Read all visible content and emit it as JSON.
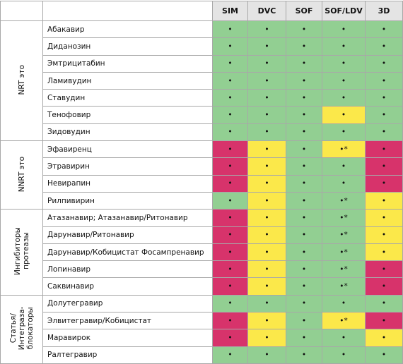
{
  "header": {
    "columns": [
      "SIM",
      "DVC",
      "SOF",
      "SOF/LDV",
      "3D"
    ]
  },
  "palette": {
    "g": "#92cf92",
    "y": "#fbe84a",
    "r": "#d7336b"
  },
  "groups": [
    {
      "label": "NRT это",
      "rows": [
        {
          "name": "Абакавир",
          "cells": [
            {
              "text": "•",
              "fill": "g"
            },
            {
              "text": "•",
              "fill": "g"
            },
            {
              "text": "•",
              "fill": "g"
            },
            {
              "text": "•",
              "fill": "g"
            },
            {
              "text": "•",
              "fill": "g"
            }
          ]
        },
        {
          "name": "Диданозин",
          "cells": [
            {
              "text": "•",
              "fill": "g"
            },
            {
              "text": "•",
              "fill": "g"
            },
            {
              "text": "•",
              "fill": "g"
            },
            {
              "text": "•",
              "fill": "g"
            },
            {
              "text": "•",
              "fill": "g"
            }
          ]
        },
        {
          "name": "Эмтрицитабин",
          "cells": [
            {
              "text": "•",
              "fill": "g"
            },
            {
              "text": "•",
              "fill": "g"
            },
            {
              "text": "•",
              "fill": "g"
            },
            {
              "text": "•",
              "fill": "g"
            },
            {
              "text": "•",
              "fill": "g"
            }
          ]
        },
        {
          "name": "Ламивудин",
          "cells": [
            {
              "text": "•",
              "fill": "g"
            },
            {
              "text": "•",
              "fill": "g"
            },
            {
              "text": "•",
              "fill": "g"
            },
            {
              "text": "•",
              "fill": "g"
            },
            {
              "text": "•",
              "fill": "g"
            }
          ]
        },
        {
          "name": "Ставудин",
          "cells": [
            {
              "text": "•",
              "fill": "g"
            },
            {
              "text": "•",
              "fill": "g"
            },
            {
              "text": "•",
              "fill": "g"
            },
            {
              "text": "•",
              "fill": "g"
            },
            {
              "text": "•",
              "fill": "g"
            }
          ]
        },
        {
          "name": "Тенофовир",
          "cells": [
            {
              "text": "•",
              "fill": "g"
            },
            {
              "text": "•",
              "fill": "g"
            },
            {
              "text": "•",
              "fill": "g"
            },
            {
              "text": "•",
              "fill": "y"
            },
            {
              "text": "•",
              "fill": "g"
            }
          ]
        },
        {
          "name": "Зидовудин",
          "cells": [
            {
              "text": "•",
              "fill": "g"
            },
            {
              "text": "•",
              "fill": "g"
            },
            {
              "text": "•",
              "fill": "g"
            },
            {
              "text": "•",
              "fill": "g"
            },
            {
              "text": "•",
              "fill": "g"
            }
          ]
        }
      ]
    },
    {
      "label": "NNRT это",
      "rows": [
        {
          "name": "Эфавиренц",
          "cells": [
            {
              "text": "•",
              "fill": "r"
            },
            {
              "text": "•",
              "fill": "y"
            },
            {
              "text": "•",
              "fill": "g"
            },
            {
              "text": "•*",
              "fill": "y"
            },
            {
              "text": "•",
              "fill": "r"
            }
          ]
        },
        {
          "name": "Этравирин",
          "cells": [
            {
              "text": "•",
              "fill": "r"
            },
            {
              "text": "•",
              "fill": "y"
            },
            {
              "text": "•",
              "fill": "g"
            },
            {
              "text": "•",
              "fill": "g"
            },
            {
              "text": "•",
              "fill": "r"
            }
          ]
        },
        {
          "name": "Невирапин",
          "cells": [
            {
              "text": "•",
              "fill": "r"
            },
            {
              "text": "•",
              "fill": "y"
            },
            {
              "text": "•",
              "fill": "g"
            },
            {
              "text": "•",
              "fill": "g"
            },
            {
              "text": "•",
              "fill": "r"
            }
          ]
        },
        {
          "name": "Рилпивирин",
          "cells": [
            {
              "text": "•",
              "fill": "g"
            },
            {
              "text": "•",
              "fill": "y"
            },
            {
              "text": "•",
              "fill": "g"
            },
            {
              "text": "•*",
              "fill": "g"
            },
            {
              "text": "•",
              "fill": "y"
            }
          ]
        }
      ]
    },
    {
      "label": "Ингибиторы протеазы",
      "rows": [
        {
          "name": "Атазанавир; Атазанавир/Ритонавир",
          "cells": [
            {
              "text": "•",
              "fill": "r"
            },
            {
              "text": "•",
              "fill": "y"
            },
            {
              "text": "•",
              "fill": "g"
            },
            {
              "text": "•*",
              "fill": "g"
            },
            {
              "text": "•",
              "fill": "y"
            }
          ]
        },
        {
          "name": "Дарунавир/Ритонавир",
          "cells": [
            {
              "text": "•",
              "fill": "r"
            },
            {
              "text": "•",
              "fill": "y"
            },
            {
              "text": "•",
              "fill": "g"
            },
            {
              "text": "•*",
              "fill": "g"
            },
            {
              "text": "•",
              "fill": "y"
            }
          ]
        },
        {
          "name": "Дарунавир/Кобицистат Фосампренавир",
          "cells": [
            {
              "text": "•",
              "fill": "r"
            },
            {
              "text": "•",
              "fill": "y"
            },
            {
              "text": "•",
              "fill": "g"
            },
            {
              "text": "•*",
              "fill": "g"
            },
            {
              "text": "•",
              "fill": "y"
            }
          ]
        },
        {
          "name": "Лопинавир",
          "cells": [
            {
              "text": "•",
              "fill": "r"
            },
            {
              "text": "•",
              "fill": "y"
            },
            {
              "text": "•",
              "fill": "g"
            },
            {
              "text": "•*",
              "fill": "g"
            },
            {
              "text": "•",
              "fill": "r"
            }
          ]
        },
        {
          "name": "Саквинавир",
          "cells": [
            {
              "text": "•",
              "fill": "r"
            },
            {
              "text": "•",
              "fill": "y"
            },
            {
              "text": "•",
              "fill": "g"
            },
            {
              "text": "•*",
              "fill": "g"
            },
            {
              "text": "•",
              "fill": "r"
            }
          ]
        }
      ]
    },
    {
      "label": "Статья/ Интеграза- блокаторы",
      "rows": [
        {
          "name": "Долутегравир",
          "cells": [
            {
              "text": "•",
              "fill": "g"
            },
            {
              "text": "•",
              "fill": "g"
            },
            {
              "text": "•",
              "fill": "g"
            },
            {
              "text": "•",
              "fill": "g"
            },
            {
              "text": "•",
              "fill": "g"
            }
          ]
        },
        {
          "name": "Элвитегравир/Кобицистат",
          "cells": [
            {
              "text": "•",
              "fill": "r"
            },
            {
              "text": "•",
              "fill": "y"
            },
            {
              "text": "•",
              "fill": "g"
            },
            {
              "text": "•*",
              "fill": "y"
            },
            {
              "text": "•",
              "fill": "r"
            }
          ]
        },
        {
          "name": "Маравирок",
          "cells": [
            {
              "text": "•",
              "fill": "r"
            },
            {
              "text": "•",
              "fill": "y"
            },
            {
              "text": "•",
              "fill": "g"
            },
            {
              "text": "•",
              "fill": "g"
            },
            {
              "text": "•",
              "fill": "y"
            }
          ]
        },
        {
          "name": "Ралтегравир",
          "cells": [
            {
              "text": "•",
              "fill": "g"
            },
            {
              "text": "•",
              "fill": "g"
            },
            {
              "text": "•",
              "fill": "g"
            },
            {
              "text": "•",
              "fill": "g"
            },
            {
              "text": "•",
              "fill": "g"
            }
          ]
        }
      ]
    }
  ]
}
